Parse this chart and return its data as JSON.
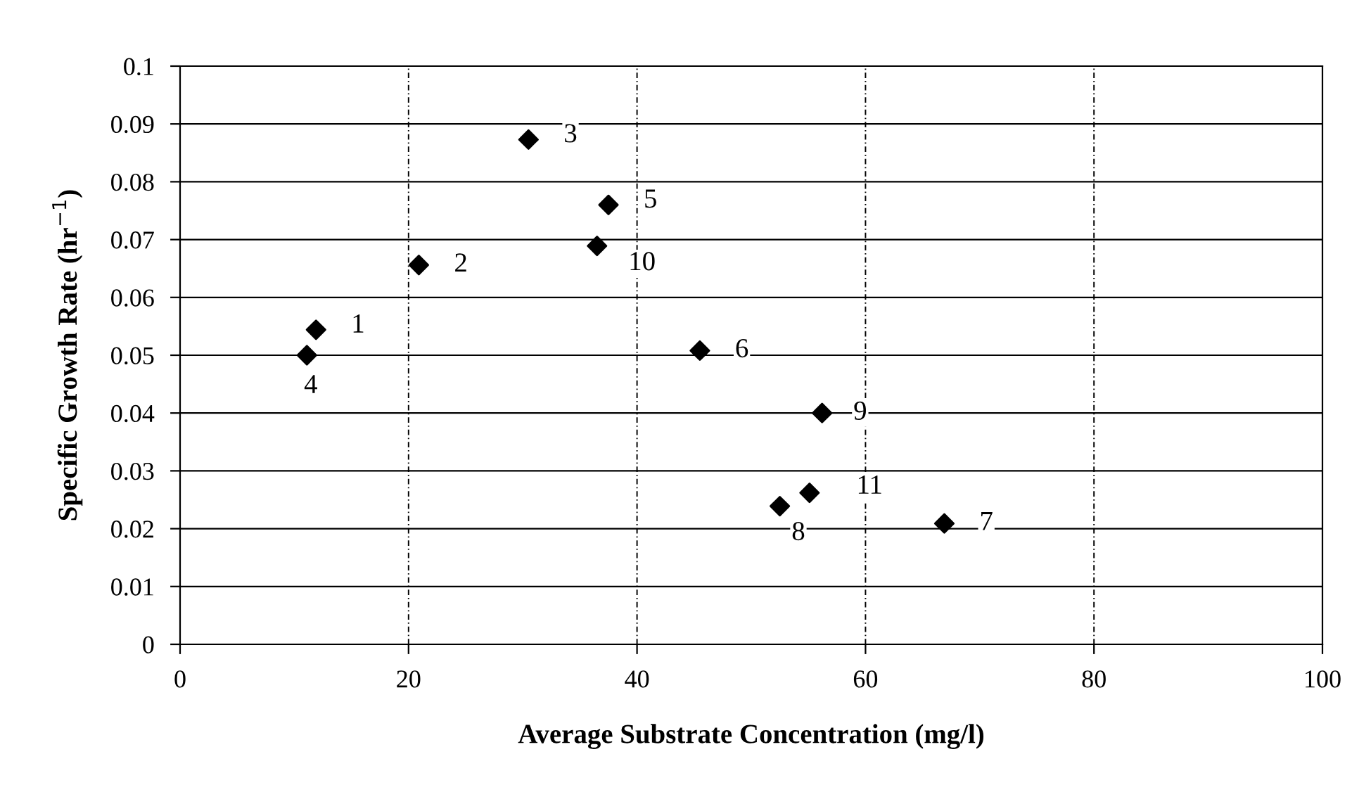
{
  "chart_data": {
    "type": "scatter",
    "xlabel": "Average Substrate Concentration (mg/l)",
    "ylabel": "Specific Growth Rate (hr$^{−1}$)",
    "x": [
      11.9,
      20.9,
      30.5,
      11.1,
      37.5,
      45.5,
      66.9,
      52.5,
      56.2,
      36.5,
      55.1
    ],
    "series": [
      {
        "color": "#000000",
        "values": [
          0.0544,
          0.0656,
          0.0873,
          0.05,
          0.076,
          0.0508,
          0.0209,
          0.0239,
          0.04,
          0.0689,
          0.0262
        ]
      }
    ],
    "annotations": [
      {
        "text": "1",
        "x": 11.9,
        "y": 0.0544
      },
      {
        "text": "2",
        "x": 20.9,
        "y": 0.0656
      },
      {
        "text": "3",
        "x": 30.5,
        "y": 0.0873
      },
      {
        "text": "4",
        "x": 11.1,
        "y": 0.05
      },
      {
        "text": "5",
        "x": 37.5,
        "y": 0.076
      },
      {
        "text": "6",
        "x": 45.5,
        "y": 0.0508
      },
      {
        "text": "7",
        "x": 66.9,
        "y": 0.0209
      },
      {
        "text": "8",
        "x": 52.5,
        "y": 0.0239
      },
      {
        "text": "9",
        "x": 56.2,
        "y": 0.04
      },
      {
        "text": "10",
        "x": 36.5,
        "y": 0.0689
      },
      {
        "text": "11",
        "x": 55.1,
        "y": 0.0262
      }
    ],
    "xlim": [
      0,
      100
    ],
    "xticks": [
      0,
      20,
      40,
      60,
      80,
      100
    ],
    "ylim": [
      0,
      0.1
    ],
    "yticks": [
      0,
      0.01,
      0.02,
      0.03,
      0.04,
      0.05,
      0.06,
      0.07,
      0.08,
      0.09,
      0.1
    ],
    "grid": true,
    "marker": "diamond"
  }
}
